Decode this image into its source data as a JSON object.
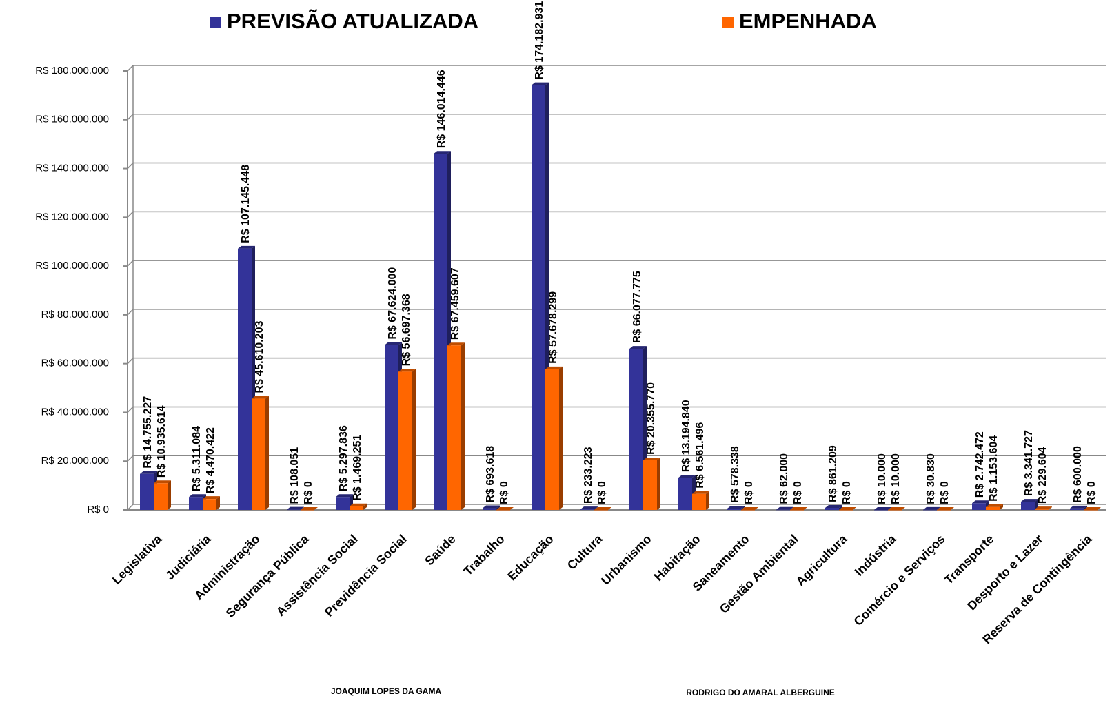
{
  "chart_data": {
    "type": "bar",
    "categories": [
      "Legislativa",
      "Judiciária",
      "Administração",
      "Segurança Pública",
      "Assistência Social",
      "Previdência Social",
      "Saúde",
      "Trabalho",
      "Educação",
      "Cultura",
      "Urbanismo",
      "Habitação",
      "Saneamento",
      "Gestão Ambiental",
      "Agricultura",
      "Indústria",
      "Comércio e Serviços",
      "Transporte",
      "Desporto e Lazer",
      "Reserva de Contingência"
    ],
    "series": [
      {
        "name": "PREVISÃO ATUALIZADA",
        "color": "#333399",
        "values": [
          14755227,
          5311084,
          107145448,
          108051,
          5297836,
          67624000,
          146014446,
          693618,
          174182931,
          233223,
          66077775,
          13194840,
          578338,
          62000,
          861209,
          10000,
          30830,
          2742472,
          3341727,
          600000
        ],
        "value_labels": [
          "R$ 14.755.227",
          "R$ 5.311.084",
          "R$ 107.145.448",
          "R$ 108.051",
          "R$ 5.297.836",
          "R$ 67.624.000",
          "R$ 146.014.446",
          "R$ 693.618",
          "R$ 174.182.931",
          "R$ 233.223",
          "R$ 66.077.775",
          "R$ 13.194.840",
          "R$ 578.338",
          "R$ 62.000",
          "R$ 861.209",
          "R$ 10.000",
          "R$ 30.830",
          "R$ 2.742.472",
          "R$ 3.341.727",
          "R$ 600.000"
        ]
      },
      {
        "name": "EMPENHADA",
        "color": "#ff6600",
        "values": [
          10935614,
          4470422,
          45610203,
          0,
          1469251,
          56697368,
          67459607,
          0,
          57678299,
          0,
          20355770,
          6561496,
          0,
          0,
          0,
          10000,
          0,
          1153604,
          229604,
          0
        ],
        "value_labels": [
          "R$ 10.935.614",
          "R$ 4.470.422",
          "R$ 45.610.203",
          "R$ 0",
          "R$ 1.469.251",
          "R$ 56.697.368",
          "R$ 67.459.607",
          "R$ 0",
          "R$ 57.678.299",
          "R$ 0",
          "R$ 20.355.770",
          "R$ 6.561.496",
          "R$ 0",
          "R$ 0",
          "R$ 0",
          "R$ 10.000",
          "R$ 0",
          "R$ 1.153.604",
          "R$ 229.604",
          "R$ 0"
        ]
      }
    ],
    "ylim": [
      0,
      180000000
    ],
    "yticks": [
      {
        "value": 0,
        "label": "R$ 0"
      },
      {
        "value": 20000000,
        "label": "R$ 20.000.000"
      },
      {
        "value": 40000000,
        "label": "R$ 40.000.000"
      },
      {
        "value": 60000000,
        "label": "R$ 60.000.000"
      },
      {
        "value": 80000000,
        "label": "R$ 80.000.000"
      },
      {
        "value": 100000000,
        "label": "R$ 100.000.000"
      },
      {
        "value": 120000000,
        "label": "R$ 120.000.000"
      },
      {
        "value": 140000000,
        "label": "R$ 140.000.000"
      },
      {
        "value": 160000000,
        "label": "R$ 160.000.000"
      },
      {
        "value": 180000000,
        "label": "R$ 180.000.000"
      }
    ],
    "grid": true,
    "annotations": [
      "JOAQUIM LOPES DA GAMA",
      "RODRIGO DO AMARAL ALBERGUINE"
    ]
  }
}
